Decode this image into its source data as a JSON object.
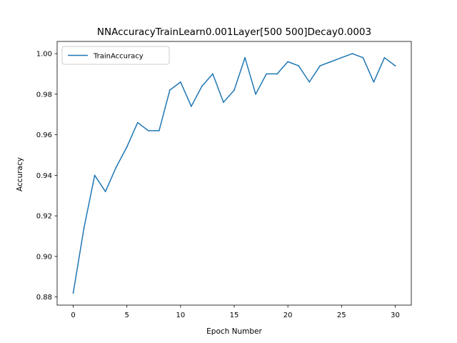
{
  "chart_data": {
    "type": "line",
    "title": "NNAccuracyTrainLearn0.001Layer[500 500]Decay0.0003",
    "xlabel": "Epoch Number",
    "ylabel": "Accuracy",
    "xlim": [
      -1.5,
      31.5
    ],
    "ylim": [
      0.876,
      1.006
    ],
    "xticks": [
      0,
      5,
      10,
      15,
      20,
      25,
      30
    ],
    "xtick_labels": [
      "0",
      "5",
      "10",
      "15",
      "20",
      "25",
      "30"
    ],
    "yticks": [
      0.88,
      0.9,
      0.92,
      0.94,
      0.96,
      0.98,
      1.0
    ],
    "ytick_labels": [
      "0.88",
      "0.90",
      "0.92",
      "0.94",
      "0.96",
      "0.98",
      "1.00"
    ],
    "grid": false,
    "legend_position": "top-left",
    "series": [
      {
        "name": "TrainAccuracy",
        "color": "#1f77b4",
        "x": [
          0,
          1,
          2,
          3,
          4,
          5,
          6,
          7,
          8,
          9,
          10,
          11,
          12,
          13,
          14,
          15,
          16,
          17,
          18,
          19,
          20,
          21,
          22,
          23,
          24,
          25,
          26,
          27,
          28,
          29,
          30
        ],
        "y": [
          0.882,
          0.914,
          0.94,
          0.932,
          0.944,
          0.954,
          0.966,
          0.962,
          0.962,
          0.982,
          0.986,
          0.974,
          0.984,
          0.99,
          0.976,
          0.982,
          0.998,
          0.98,
          0.99,
          0.99,
          0.996,
          0.994,
          0.986,
          0.994,
          0.996,
          0.998,
          1.0,
          0.998,
          0.986,
          0.998,
          0.994
        ]
      }
    ]
  }
}
